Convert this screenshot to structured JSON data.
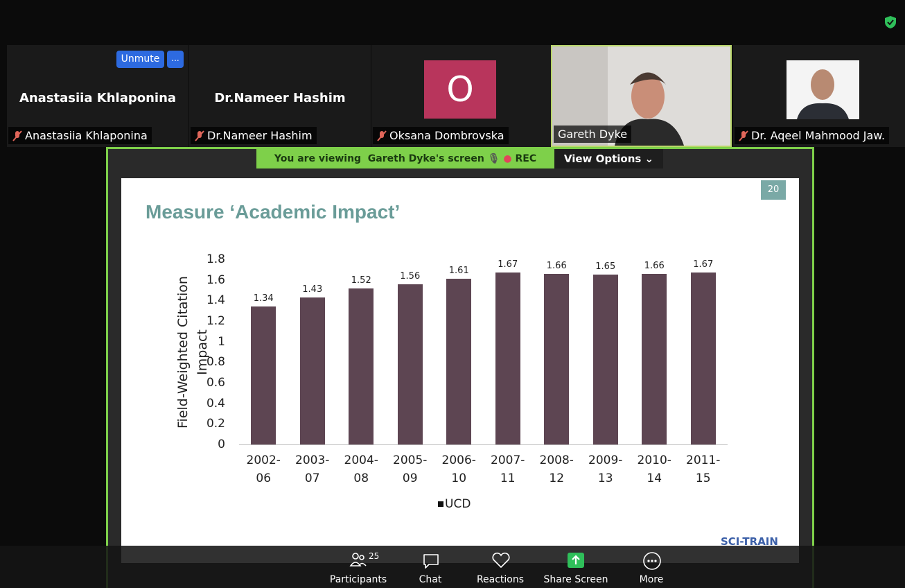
{
  "participants": [
    {
      "name": "Anastasiia Khlaponina",
      "label": "Anastasiia Khlaponina"
    },
    {
      "name": "Dr.Nameer Hashim",
      "label": "Dr.Nameer Hashim"
    },
    {
      "avatar": "O",
      "label": "Oksana Dombrovska"
    },
    {
      "label": "Gareth Dyke"
    },
    {
      "label": "Dr. Aqeel Mahmood Jaw."
    }
  ],
  "tile_buttons": {
    "unmute": "Unmute",
    "more": "..."
  },
  "banner": {
    "text": "You are viewing  Gareth Dyke's screen",
    "rec": "REC",
    "view_options": "View Options"
  },
  "slide": {
    "number": "20",
    "title": "Measure ‘Academic Impact’",
    "logo": "SCI-TRAIN"
  },
  "chart_data": {
    "type": "bar",
    "y_label": "Field-Weighted Citation Impact",
    "categories": [
      "2002-06",
      "2003-07",
      "2004-08",
      "2005-09",
      "2006-10",
      "2007-11",
      "2008-12",
      "2009-13",
      "2010-14",
      "2011-15"
    ],
    "series": [
      {
        "name": "UCD",
        "color": "#5d4552",
        "values": [
          1.34,
          1.43,
          1.52,
          1.56,
          1.61,
          1.67,
          1.66,
          1.65,
          1.66,
          1.67
        ]
      }
    ],
    "ylim": [
      0,
      1.8
    ],
    "yticks": [
      0,
      0.2,
      0.4,
      0.6,
      0.8,
      1,
      1.2,
      1.4,
      1.6,
      1.8
    ],
    "grid": false,
    "legend": "bottom"
  },
  "toolbar": {
    "participants_count": 25,
    "items": [
      "Participants",
      "Chat",
      "Reactions",
      "Share Screen",
      "More"
    ]
  }
}
